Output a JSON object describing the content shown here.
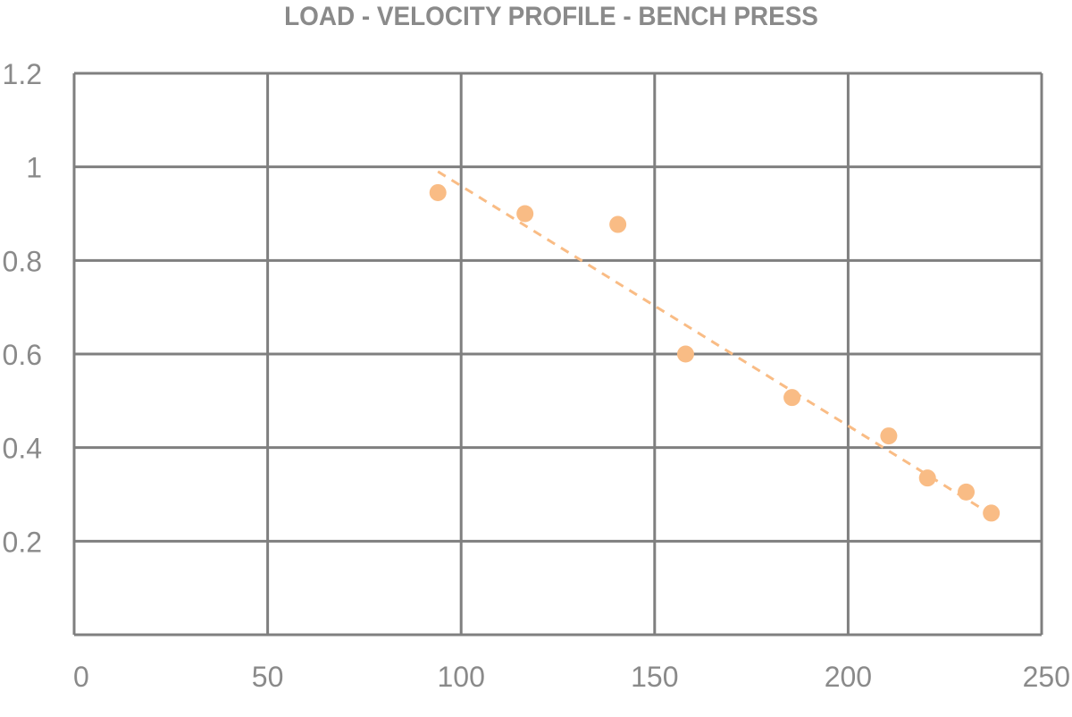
{
  "chart_data": {
    "type": "scatter",
    "title": "LOAD - VELOCITY PROFILE - BENCH PRESS",
    "xlabel": "",
    "ylabel": "",
    "xlim": [
      0,
      250
    ],
    "ylim": [
      0,
      1.2
    ],
    "xticks": [
      0,
      50,
      100,
      150,
      200,
      250
    ],
    "xtick_labels": [
      "0",
      "50",
      "100",
      "150",
      "200",
      "250"
    ],
    "yticks": [
      0.2,
      0.4,
      0.6,
      0.8,
      1,
      1.2
    ],
    "ytick_labels": [
      "0.2",
      "0.4",
      "0.6",
      "0.8",
      "1",
      "1.2"
    ],
    "grid": true,
    "legend": "none",
    "series": [
      {
        "x": [
          94,
          116.5,
          140.5,
          158,
          185.5,
          210.5,
          220.5,
          230.5,
          237
        ],
        "y": [
          0.945,
          0.9,
          0.877,
          0.6,
          0.507,
          0.425,
          0.335,
          0.305,
          0.26
        ],
        "color": "#f9bc85"
      }
    ],
    "trendline": {
      "type": "linear",
      "x": [
        94,
        237
      ],
      "y": [
        0.99,
        0.257
      ],
      "style": "dashed",
      "color": "#f9bc85"
    },
    "colors": {
      "grid": "#7f7f7f",
      "text": "#8a8a8a",
      "marker": "#f9bc85"
    }
  }
}
